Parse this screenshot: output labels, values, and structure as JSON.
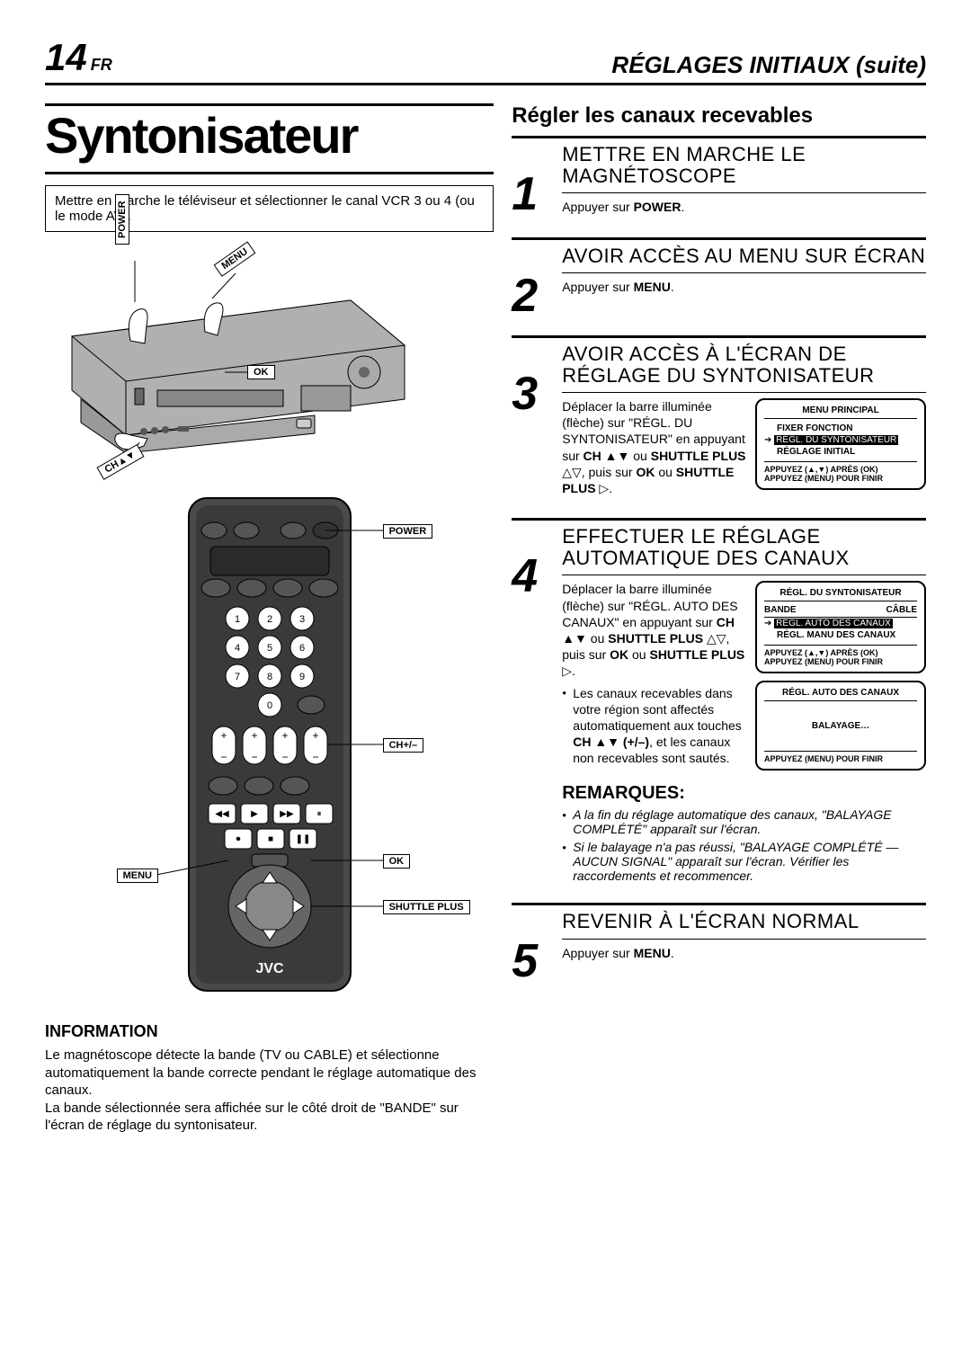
{
  "page": {
    "number": "14",
    "lang": "FR",
    "section": "RÉGLAGES INITIAUX (suite)"
  },
  "left": {
    "title": "Syntonisateur",
    "intro": "Mettre en marche le téléviseur et sélectionner le canal VCR 3 ou 4 (ou le mode AV).",
    "vcr_callouts": {
      "power": "POWER",
      "menu": "MENU",
      "ok": "OK",
      "ch": "CH▲▼"
    },
    "remote_callouts": {
      "power": "POWER",
      "ch": "CH+/–",
      "ok": "OK",
      "menu": "MENU",
      "shuttle": "SHUTTLE PLUS"
    },
    "brand": "JVC",
    "info_title": "INFORMATION",
    "info_text": "Le magnétoscope détecte la bande (TV ou CABLE) et sélectionne automatiquement la bande correcte pendant le réglage automatique des canaux.\nLa bande sélectionnée sera affichée sur le côté droit de \"BANDE\" sur l'écran de réglage du syntonisateur."
  },
  "right": {
    "heading": "Régler les canaux recevables",
    "steps": [
      {
        "num": "1",
        "title": "METTRE EN MARCHE LE MAGNÉTOSCOPE",
        "text": "Appuyer sur <b>POWER</b>."
      },
      {
        "num": "2",
        "title": "AVOIR ACCÈS AU MENU SUR ÉCRAN",
        "text": "Appuyer sur <b>MENU</b>."
      },
      {
        "num": "3",
        "title": "AVOIR ACCÈS À L'ÉCRAN DE RÉGLAGE DU SYNTONISATEUR",
        "text": "Déplacer la barre illuminée (flèche) sur \"RÉGL. DU SYNTONISATEUR\" en appuyant sur <b>CH ▲▼</b> ou <b>SHUTTLE PLUS</b> △▽, puis sur <b>OK</b> ou <b>SHUTTLE PLUS</b> ▷.",
        "osd": {
          "title": "MENU PRINCIPAL",
          "lines": [
            "FIXER FONCTION",
            "RÉGL. DU SYNTONISATEUR",
            "RÉGLAGE INITIAL"
          ],
          "highlight_index": 1,
          "arrow_prefix": "➔",
          "footer": "APPUYEZ (▲,▼) APRÈS (OK)\nAPPUYEZ (MENU) POUR FINIR"
        }
      },
      {
        "num": "4",
        "title": "EFFECTUER LE RÉGLAGE AUTOMATIQUE DES CANAUX",
        "text": "Déplacer la barre illuminée (flèche) sur \"RÉGL. AUTO DES CANAUX\" en appuyant sur <b>CH ▲▼</b> ou <b>SHUTTLE PLUS</b> △▽, puis sur <b>OK</b> ou <b>SHUTTLE PLUS</b> ▷.",
        "osd": {
          "title": "RÉGL. DU SYNTONISATEUR",
          "band_left": "BANDE",
          "band_right": "CÂBLE",
          "lines": [
            "RÉGL. AUTO DES CANAUX",
            "RÉGL. MANU DES CANAUX"
          ],
          "highlight_index": 0,
          "arrow_prefix": "➔",
          "footer": "APPUYEZ (▲,▼) APRÈS (OK)\nAPPUYEZ (MENU) POUR FINIR"
        },
        "bullets": [
          "Les canaux recevables dans votre région sont affectés automatiquement aux touches <b>CH ▲▼ (+/–)</b>, et les canaux non recevables sont sautés."
        ],
        "osd2": {
          "title": "RÉGL. AUTO DES CANAUX",
          "center": "BALAYAGE…",
          "footer": "APPUYEZ (MENU) POUR FINIR"
        },
        "remarques_title": "REMARQUES:",
        "remarques": [
          "A la fin du réglage automatique des canaux, \"BALAYAGE COMPLÉTÉ\" apparaît sur l'écran.",
          "Si le balayage n'a pas réussi, \"BALAYAGE COMPLÉTÉ — AUCUN SIGNAL\" apparaît sur l'écran. Vérifier les raccordements et recommencer."
        ]
      },
      {
        "num": "5",
        "title": "REVENIR À L'ÉCRAN NORMAL",
        "text": "Appuyer sur <b>MENU</b>."
      }
    ]
  }
}
